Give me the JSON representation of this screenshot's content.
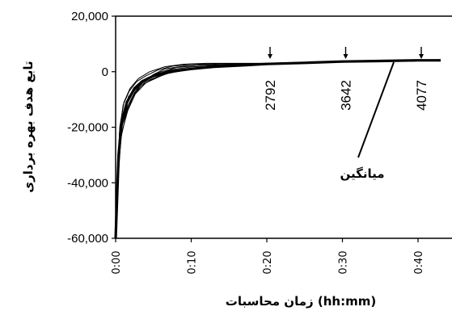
{
  "chart_data": {
    "type": "line",
    "xlabel": "زمان محاسبات (hh:mm)",
    "ylabel": "تابع هدف بهره برداری",
    "x_tick_labels": [
      "0:00",
      "0:10",
      "0:20",
      "0:30",
      "0:40"
    ],
    "ylim": [
      -60000,
      20000
    ],
    "y_ticks": [
      20000,
      0,
      -20000,
      -40000,
      -60000
    ],
    "y_tick_labels": [
      "20,000",
      "0",
      "-20,000",
      "-40,000",
      "-60,000"
    ],
    "grid": false,
    "legend": "none",
    "annotations": [
      {
        "text": "2792",
        "x_minutes": 20
      },
      {
        "text": "3642",
        "x_minutes": 30
      },
      {
        "text": "4077",
        "x_minutes": 40
      }
    ],
    "mean_label": "میانگین",
    "series": [
      {
        "name": "میانگین",
        "bold": true,
        "points": [
          [
            0,
            -60000
          ],
          [
            0.4,
            -30000
          ],
          [
            0.8,
            -18000
          ],
          [
            1.5,
            -11000
          ],
          [
            2.5,
            -6000
          ],
          [
            3.5,
            -3500
          ],
          [
            5,
            -1500
          ],
          [
            7,
            0
          ],
          [
            10,
            1000
          ],
          [
            13,
            1800
          ],
          [
            17,
            2300
          ],
          [
            20,
            2792
          ],
          [
            25,
            3200
          ],
          [
            30,
            3642
          ],
          [
            35,
            3850
          ],
          [
            40,
            4077
          ],
          [
            43,
            4100
          ]
        ]
      },
      {
        "name": "",
        "points": [
          [
            0,
            -60000
          ],
          [
            0.35,
            -35000
          ],
          [
            0.8,
            -22000
          ],
          [
            1.6,
            -14000
          ],
          [
            2.6,
            -8000
          ],
          [
            4,
            -4000
          ],
          [
            6,
            -1500
          ],
          [
            8,
            500
          ],
          [
            11,
            1200
          ],
          [
            15,
            2100
          ],
          [
            20,
            2700
          ],
          [
            30,
            3600
          ],
          [
            43,
            4100
          ]
        ]
      },
      {
        "name": "",
        "points": [
          [
            0,
            -60000
          ],
          [
            0.45,
            -25000
          ],
          [
            0.9,
            -16000
          ],
          [
            1.7,
            -9000
          ],
          [
            2.8,
            -5000
          ],
          [
            4,
            -2500
          ],
          [
            6,
            0
          ],
          [
            8,
            1500
          ],
          [
            11,
            2300
          ],
          [
            16,
            2800
          ],
          [
            20,
            2900
          ],
          [
            30,
            3700
          ],
          [
            43,
            4100
          ]
        ]
      },
      {
        "name": "",
        "points": [
          [
            0,
            -60000
          ],
          [
            0.3,
            -40000
          ],
          [
            0.7,
            -24000
          ],
          [
            1.4,
            -15000
          ],
          [
            2.3,
            -9000
          ],
          [
            3.4,
            -5000
          ],
          [
            5,
            -2500
          ],
          [
            7,
            -500
          ],
          [
            10,
            800
          ],
          [
            14,
            2000
          ],
          [
            20,
            2800
          ],
          [
            30,
            3650
          ],
          [
            43,
            4100
          ]
        ]
      },
      {
        "name": "",
        "points": [
          [
            0,
            -60000
          ],
          [
            0.5,
            -22000
          ],
          [
            1,
            -12000
          ],
          [
            1.8,
            -7000
          ],
          [
            2.8,
            -3500
          ],
          [
            4,
            -1500
          ],
          [
            5.5,
            500
          ],
          [
            7.5,
            2000
          ],
          [
            10,
            2600
          ],
          [
            14,
            2900
          ],
          [
            20,
            3000
          ],
          [
            30,
            3700
          ],
          [
            43,
            4100
          ]
        ]
      },
      {
        "name": "",
        "points": [
          [
            0,
            -60000
          ],
          [
            0.4,
            -28000
          ],
          [
            0.9,
            -17000
          ],
          [
            1.6,
            -10000
          ],
          [
            2.6,
            -6500
          ],
          [
            3.6,
            -4000
          ],
          [
            5,
            -1000
          ],
          [
            6.5,
            1000
          ],
          [
            9,
            2000
          ],
          [
            12,
            2500
          ],
          [
            20,
            2850
          ],
          [
            30,
            3650
          ],
          [
            43,
            4100
          ]
        ]
      },
      {
        "name": "",
        "points": [
          [
            0,
            -60000
          ],
          [
            0.35,
            -32000
          ],
          [
            0.8,
            -20000
          ],
          [
            1.5,
            -13000
          ],
          [
            2.5,
            -7500
          ],
          [
            3.8,
            -3000
          ],
          [
            5.5,
            -800
          ],
          [
            7.5,
            800
          ],
          [
            10,
            1700
          ],
          [
            14,
            2400
          ],
          [
            20,
            2750
          ],
          [
            30,
            3600
          ],
          [
            43,
            4100
          ]
        ]
      },
      {
        "name": "",
        "points": [
          [
            0,
            -60000
          ],
          [
            0.45,
            -27000
          ],
          [
            0.9,
            -19000
          ],
          [
            1.7,
            -12000
          ],
          [
            2.7,
            -7000
          ],
          [
            4,
            -3500
          ],
          [
            6,
            -1200
          ],
          [
            8,
            0
          ],
          [
            11,
            1300
          ],
          [
            15,
            2200
          ],
          [
            20,
            2700
          ],
          [
            30,
            3600
          ],
          [
            43,
            4100
          ]
        ]
      },
      {
        "name": "",
        "points": [
          [
            0,
            -60000
          ],
          [
            0.55,
            -20000
          ],
          [
            1.1,
            -11000
          ],
          [
            1.9,
            -6000
          ],
          [
            3,
            -2500
          ],
          [
            4.5,
            0
          ],
          [
            6.5,
            1800
          ],
          [
            9,
            2700
          ],
          [
            12,
            3000
          ],
          [
            20,
            3050
          ],
          [
            30,
            3700
          ],
          [
            43,
            4100
          ]
        ]
      }
    ]
  }
}
